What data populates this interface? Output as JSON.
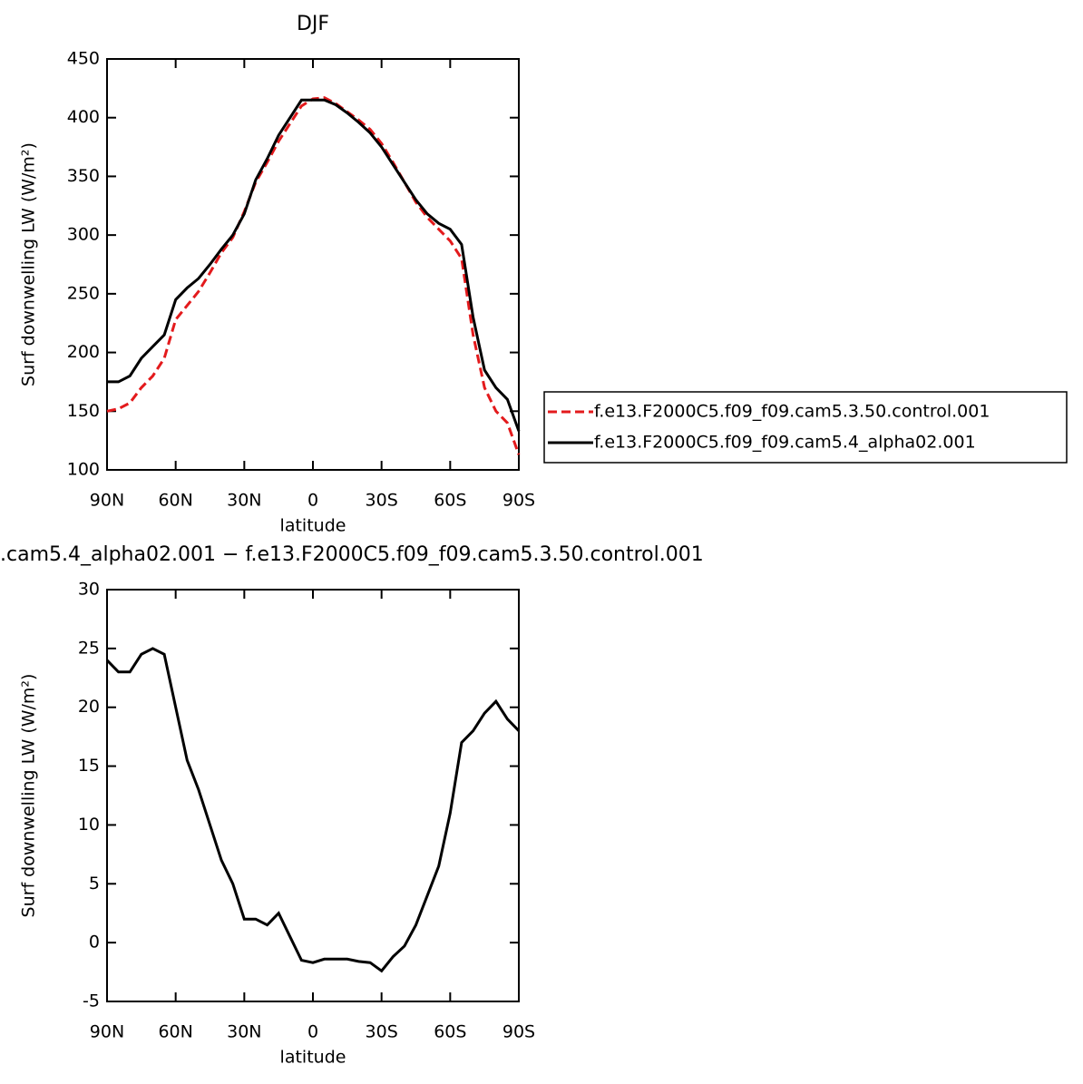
{
  "chart_data": [
    {
      "type": "line",
      "title": "DJF",
      "xlabel": "latitude",
      "ylabel": "Surf downwelling LW (W/m²)",
      "x": [
        90,
        85,
        80,
        75,
        70,
        65,
        60,
        55,
        50,
        45,
        40,
        35,
        30,
        25,
        20,
        15,
        10,
        5,
        0,
        -5,
        -10,
        -15,
        -20,
        -25,
        -30,
        -35,
        -40,
        -45,
        -50,
        -55,
        -60,
        -65,
        -70,
        -75,
        -80,
        -85,
        -90
      ],
      "xlim": [
        90,
        -90
      ],
      "xticks": [
        {
          "value": 90,
          "label": "90N"
        },
        {
          "value": 60,
          "label": "60N"
        },
        {
          "value": 30,
          "label": "30N"
        },
        0,
        {
          "value": -30,
          "label": "30S"
        },
        {
          "value": -60,
          "label": "60S"
        },
        {
          "value": -90,
          "label": "90S"
        }
      ],
      "ylim": [
        100,
        450
      ],
      "yticks": [
        100,
        150,
        200,
        250,
        300,
        350,
        400,
        450
      ],
      "series": [
        {
          "name": "f.e13.F2000C5.f09_f09.cam5.3.50.control.001",
          "color": "#e31a1c",
          "dashed": true,
          "values": [
            150,
            152,
            157,
            170,
            180,
            195,
            228,
            240,
            252,
            268,
            285,
            298,
            320,
            345,
            362,
            380,
            395,
            410,
            416,
            417,
            412,
            405,
            398,
            390,
            378,
            362,
            345,
            328,
            315,
            305,
            295,
            280,
            215,
            170,
            150,
            140,
            113
          ]
        },
        {
          "name": "f.e13.F2000C5.f09_f09.cam5.4_alpha02.001",
          "color": "#000000",
          "dashed": false,
          "values": [
            175,
            175,
            180,
            195,
            205,
            215,
            245,
            255,
            263,
            275,
            288,
            300,
            318,
            347,
            365,
            385,
            400,
            415,
            415,
            415,
            411,
            404,
            396,
            387,
            375,
            360,
            345,
            330,
            318,
            310,
            305,
            292,
            230,
            185,
            170,
            160,
            133
          ]
        }
      ]
    },
    {
      "type": "line",
      "title": ".cam5.4_alpha02.001 − f.e13.F2000C5.f09_f09.cam5.3.50.control.001",
      "xlabel": "latitude",
      "ylabel": "Surf downwelling LW (W/m²)",
      "x": [
        90,
        85,
        80,
        75,
        70,
        65,
        60,
        55,
        50,
        45,
        40,
        35,
        30,
        25,
        20,
        15,
        10,
        5,
        0,
        -5,
        -10,
        -15,
        -20,
        -25,
        -30,
        -35,
        -40,
        -45,
        -50,
        -55,
        -60,
        -65,
        -70,
        -75,
        -80,
        -85,
        -90
      ],
      "xlim": [
        90,
        -90
      ],
      "xticks": [
        {
          "value": 90,
          "label": "90N"
        },
        {
          "value": 60,
          "label": "60N"
        },
        {
          "value": 30,
          "label": "30N"
        },
        0,
        {
          "value": -30,
          "label": "30S"
        },
        {
          "value": -60,
          "label": "60S"
        },
        {
          "value": -90,
          "label": "90S"
        }
      ],
      "ylim": [
        -5,
        30
      ],
      "yticks": [
        -5,
        0,
        5,
        10,
        15,
        20,
        25,
        30
      ],
      "series": [
        {
          "color": "#000000",
          "dashed": false,
          "values": [
            24,
            23,
            23,
            24.5,
            25,
            24.5,
            20,
            15.5,
            13,
            10,
            7,
            5,
            2,
            2,
            1.5,
            2.5,
            0.5,
            -1.5,
            -1.7,
            -1.4,
            -1.4,
            -1.4,
            -1.6,
            -1.7,
            -2.4,
            -1.2,
            -0.3,
            1.5,
            4,
            6.5,
            11,
            17,
            18,
            19.5,
            20.5,
            19,
            18
          ]
        }
      ]
    }
  ]
}
